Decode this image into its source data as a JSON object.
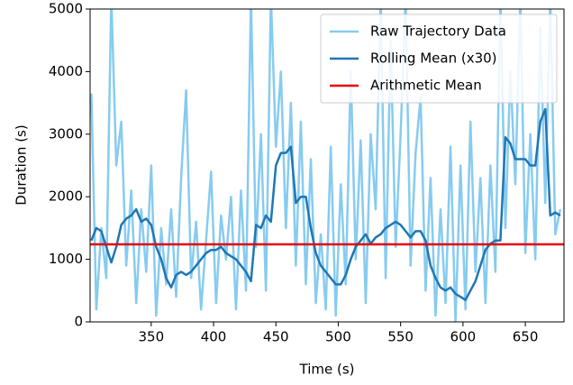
{
  "chart_data": {
    "type": "line",
    "x_label": "Time (s)",
    "y_label": "Duration (s)",
    "x": [
      302,
      306,
      310,
      314,
      318,
      322,
      326,
      330,
      334,
      338,
      342,
      346,
      350,
      354,
      358,
      362,
      366,
      370,
      374,
      378,
      382,
      386,
      390,
      394,
      398,
      402,
      406,
      410,
      414,
      418,
      422,
      426,
      430,
      434,
      438,
      442,
      446,
      450,
      454,
      458,
      462,
      466,
      470,
      474,
      478,
      482,
      486,
      490,
      494,
      498,
      502,
      506,
      510,
      514,
      518,
      522,
      526,
      530,
      534,
      538,
      542,
      546,
      550,
      554,
      558,
      562,
      566,
      570,
      574,
      578,
      582,
      586,
      590,
      594,
      598,
      602,
      606,
      610,
      614,
      618,
      622,
      626,
      630,
      634,
      638,
      642,
      646,
      650,
      654,
      658,
      662,
      666,
      670,
      674,
      678
    ],
    "series": [
      {
        "name": "Raw Trajectory Data",
        "color": "#87cbf0",
        "width": 2.5,
        "values": [
          3650,
          200,
          1500,
          700,
          5200,
          2500,
          3200,
          900,
          2100,
          300,
          1800,
          800,
          2500,
          100,
          1500,
          600,
          1800,
          400,
          2300,
          3700,
          700,
          1600,
          200,
          1300,
          2400,
          300,
          1700,
          1000,
          2000,
          200,
          2100,
          500,
          5200,
          1200,
          3000,
          500,
          5200,
          2800,
          4000,
          1500,
          3500,
          900,
          3200,
          600,
          2600,
          300,
          1400,
          200,
          2800,
          100,
          2200,
          600,
          4000,
          1000,
          2900,
          300,
          3000,
          1800,
          5200,
          700,
          4500,
          1200,
          3000,
          5200,
          900,
          2700,
          3600,
          500,
          2300,
          100,
          1800,
          300,
          2800,
          0,
          2500,
          200,
          3200,
          800,
          2300,
          300,
          2500,
          800,
          5200,
          1500,
          4000,
          2200,
          5200,
          1100,
          3000,
          1000,
          4700,
          1900,
          5200,
          1400,
          1800
        ]
      },
      {
        "name": "Rolling Mean (x30)",
        "color": "#1f77b4",
        "width": 2.5,
        "values": [
          1300,
          1500,
          1450,
          1200,
          950,
          1200,
          1550,
          1650,
          1700,
          1800,
          1600,
          1650,
          1550,
          1200,
          1000,
          700,
          550,
          750,
          800,
          750,
          800,
          900,
          1000,
          1100,
          1150,
          1150,
          1200,
          1100,
          1050,
          1000,
          900,
          800,
          650,
          1550,
          1500,
          1700,
          1600,
          2500,
          2700,
          2700,
          2800,
          1900,
          2000,
          2000,
          1500,
          1100,
          900,
          800,
          700,
          600,
          600,
          750,
          1000,
          1200,
          1300,
          1400,
          1250,
          1350,
          1400,
          1500,
          1550,
          1600,
          1550,
          1450,
          1350,
          1450,
          1450,
          1300,
          900,
          700,
          550,
          500,
          550,
          450,
          400,
          350,
          500,
          650,
          900,
          1150,
          1250,
          1300,
          1300,
          2950,
          2850,
          2600,
          2600,
          2600,
          2500,
          2500,
          3200,
          3400,
          1700,
          1750,
          1700
        ]
      }
    ],
    "mean_line": {
      "name": "Arithmetic Mean",
      "color": "#e8000b",
      "value": 1240
    },
    "xlim": [
      301,
      681
    ],
    "ylim": [
      0,
      5000
    ],
    "xticks": [
      350,
      400,
      450,
      500,
      550,
      600,
      650
    ],
    "yticks": [
      0,
      1000,
      2000,
      3000,
      4000,
      5000
    ],
    "legend": "upper right"
  }
}
